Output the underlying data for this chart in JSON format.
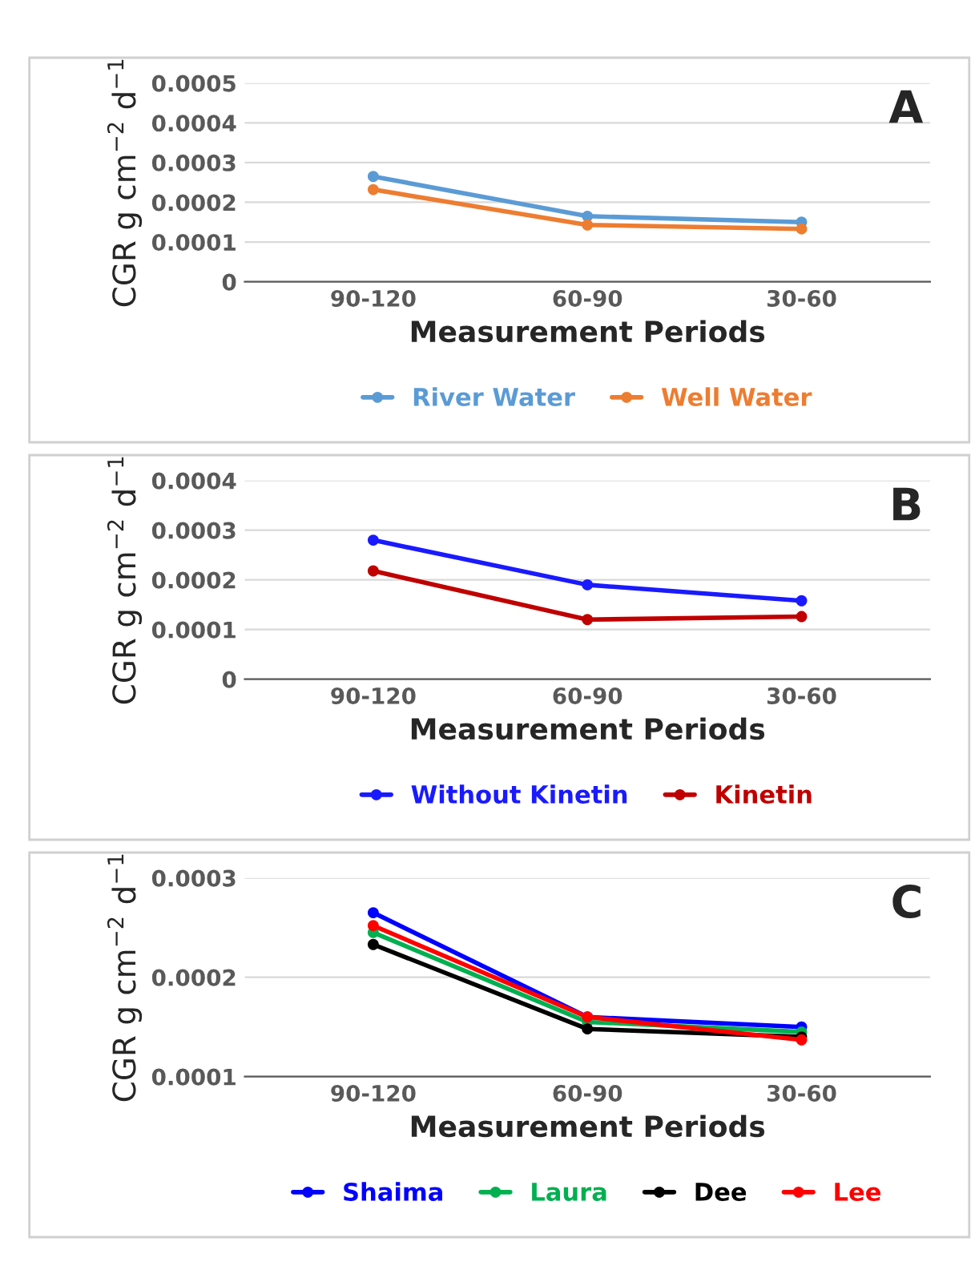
{
  "chart_data": [
    {
      "type": "line",
      "categories": [
        "90-120",
        "60-90",
        "30-60"
      ],
      "xlabel": "Measurement Periods",
      "ylabel": "CGR g cm$^{−2}$ d$^{−1}$",
      "annotations": [
        "A"
      ],
      "ylim": [
        0,
        0.0005
      ],
      "yticks": [
        {
          "value": 0,
          "label": "0"
        },
        {
          "value": 0.0001,
          "label": "0.0001"
        },
        {
          "value": 0.0002,
          "label": "0.0002"
        },
        {
          "value": 0.0003,
          "label": "0.0003"
        },
        {
          "value": 0.0004,
          "label": "0.0004"
        },
        {
          "value": 0.0005,
          "label": "0.0005"
        }
      ],
      "grid": "y",
      "legend": "bottom",
      "marker": "circle",
      "series": [
        {
          "name": "River Water",
          "color": "#5b9bd5",
          "values": [
            0.000265,
            0.000165,
            0.00015
          ]
        },
        {
          "name": "Well Water",
          "color": "#ed7d31",
          "values": [
            0.000232,
            0.000143,
            0.000133
          ]
        }
      ]
    },
    {
      "type": "line",
      "categories": [
        "90-120",
        "60-90",
        "30-60"
      ],
      "xlabel": "Measurement Periods",
      "ylabel": "CGR g cm$^{−2}$ d$^{−1}$",
      "annotations": [
        "B"
      ],
      "ylim": [
        0,
        0.0004
      ],
      "yticks": [
        {
          "value": 0,
          "label": "0"
        },
        {
          "value": 0.0001,
          "label": "0.0001"
        },
        {
          "value": 0.0002,
          "label": "0.0002"
        },
        {
          "value": 0.0003,
          "label": "0.0003"
        },
        {
          "value": 0.0004,
          "label": "0.0004"
        }
      ],
      "grid": "y",
      "legend": "bottom",
      "marker": "circle",
      "series": [
        {
          "name": "Without Kinetin",
          "color": "#1a1aff",
          "values": [
            0.00028,
            0.00019,
            0.000158
          ]
        },
        {
          "name": "Kinetin",
          "color": "#c00000",
          "values": [
            0.000218,
            0.00012,
            0.000126
          ]
        }
      ]
    },
    {
      "type": "line",
      "categories": [
        "90-120",
        "60-90",
        "30-60"
      ],
      "xlabel": "Measurement Periods",
      "ylabel": "CGR g cm$^{−2}$ d$^{−1}$",
      "annotations": [
        "C"
      ],
      "ylim": [
        0.0001,
        0.0003
      ],
      "yticks": [
        {
          "value": 0.0001,
          "label": "0.0001"
        },
        {
          "value": 0.0002,
          "label": "0.0002"
        },
        {
          "value": 0.0003,
          "label": "0.0003"
        }
      ],
      "grid": "y",
      "legend": "bottom",
      "marker": "circle",
      "series": [
        {
          "name": "Shaima",
          "color": "#0000ff",
          "values": [
            0.000265,
            0.00016,
            0.00015
          ]
        },
        {
          "name": "Laura",
          "color": "#00b050",
          "values": [
            0.000245,
            0.000155,
            0.000145
          ]
        },
        {
          "name": "Dee",
          "color": "#000000",
          "values": [
            0.000233,
            0.000148,
            0.00014
          ]
        },
        {
          "name": "Lee",
          "color": "#ff0000",
          "values": [
            0.000252,
            0.00016,
            0.000137
          ]
        }
      ]
    }
  ]
}
